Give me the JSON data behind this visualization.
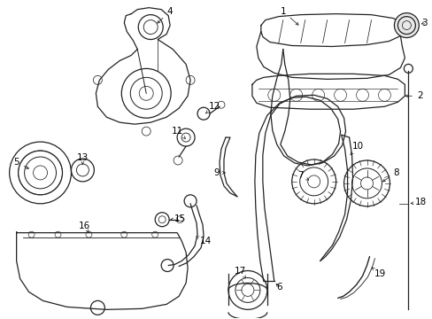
{
  "bg_color": "#ffffff",
  "line_color": "#222222",
  "label_color": "#000000",
  "lw": 0.9,
  "fig_w": 4.89,
  "fig_h": 3.6,
  "dpi": 100
}
